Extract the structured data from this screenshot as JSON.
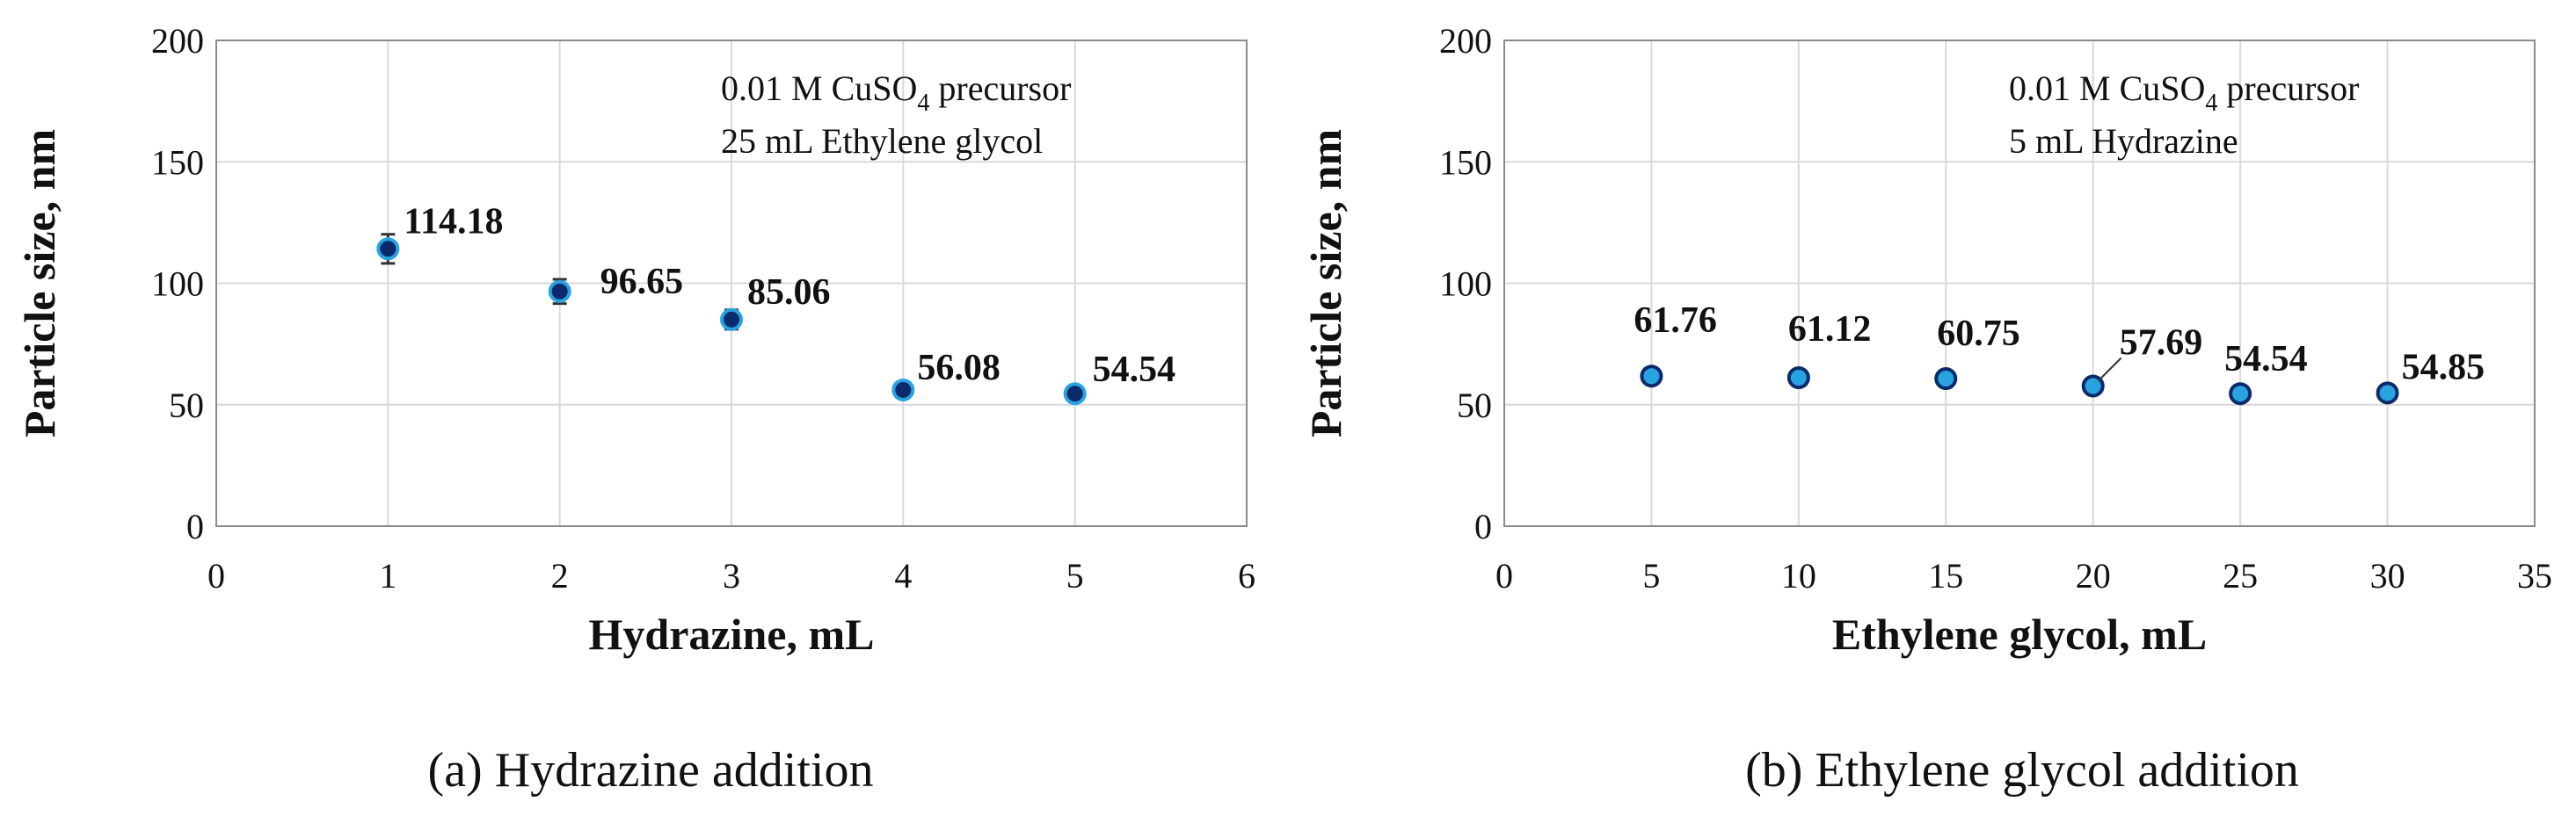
{
  "chart_data": [
    {
      "type": "scatter",
      "title": "",
      "xlabel": "Hydrazine, mL",
      "ylabel": "Particle size, nm",
      "xlim": [
        0,
        6
      ],
      "ylim": [
        0,
        200
      ],
      "xticks": [
        0,
        1,
        2,
        3,
        4,
        5,
        6
      ],
      "yticks": [
        0,
        50,
        100,
        150,
        200
      ],
      "grid": true,
      "annotation": [
        "0.01 M CuSO4 precursor",
        "25 mL Ethylene glycol"
      ],
      "annotation_subscript": "4",
      "annotation_line1_pre": "0.01 M CuSO",
      "annotation_line1_post": " precursor",
      "points": [
        {
          "x": 1,
          "y": 114.18,
          "err": 6,
          "label": "114.18"
        },
        {
          "x": 2,
          "y": 96.65,
          "err": 5,
          "label": "96.65"
        },
        {
          "x": 3,
          "y": 85.06,
          "err": 4,
          "label": "85.06"
        },
        {
          "x": 4,
          "y": 56.08,
          "err": 2,
          "label": "56.08"
        },
        {
          "x": 5,
          "y": 54.54,
          "err": 2,
          "label": "54.54"
        }
      ],
      "caption": "(a) Hydrazine addition",
      "marker_color": "#0a2a6b",
      "marker_edge": "#29a3e0"
    },
    {
      "type": "scatter",
      "title": "",
      "xlabel": "Ethylene glycol, mL",
      "ylabel": "Particle size, nm",
      "xlim": [
        0,
        35
      ],
      "ylim": [
        0,
        200
      ],
      "xticks": [
        0,
        5,
        10,
        15,
        20,
        25,
        30,
        35
      ],
      "yticks": [
        0,
        50,
        100,
        150,
        200
      ],
      "grid": true,
      "annotation": [
        "0.01 M CuSO4 precursor",
        "5 mL Hydrazine"
      ],
      "annotation_subscript": "4",
      "annotation_line1_pre": "0.01 M CuSO",
      "annotation_line1_post": " precursor",
      "points": [
        {
          "x": 5,
          "y": 61.76,
          "err": 2,
          "label": "61.76"
        },
        {
          "x": 10,
          "y": 61.12,
          "err": 2,
          "label": "61.12"
        },
        {
          "x": 15,
          "y": 60.75,
          "err": 2,
          "label": "60.75"
        },
        {
          "x": 20,
          "y": 57.69,
          "err": 2,
          "label": "57.69"
        },
        {
          "x": 25,
          "y": 54.54,
          "err": 2,
          "label": "54.54"
        },
        {
          "x": 30,
          "y": 54.85,
          "err": 2,
          "label": "54.85"
        }
      ],
      "caption": "(b) Ethylene glycol addition",
      "marker_color": "#29a3e0",
      "marker_edge": "#0a2a6b"
    }
  ]
}
